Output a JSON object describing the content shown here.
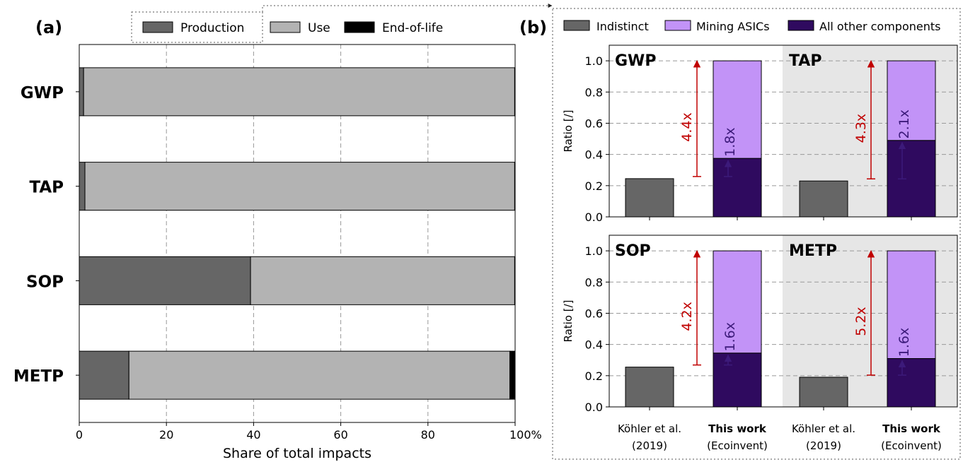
{
  "panel_a": {
    "label": "(a)",
    "chart_data": {
      "type": "bar",
      "orientation": "horizontal",
      "stacked": true,
      "categories": [
        "GWP",
        "TAP",
        "SOP",
        "METP"
      ],
      "series": [
        {
          "name": "Production",
          "values": [
            1.0,
            1.3,
            39.3,
            11.4
          ],
          "color": "#666666"
        },
        {
          "name": "Use",
          "values": [
            98.9,
            98.6,
            60.6,
            87.4
          ],
          "color": "#b3b3b3"
        },
        {
          "name": "End-of-life",
          "values": [
            0.1,
            0.1,
            0.1,
            1.2
          ],
          "color": "#000000"
        }
      ],
      "xlabel": "Share of total impacts",
      "xlim": [
        0,
        100
      ],
      "xticks": [
        "0",
        "20",
        "40",
        "60",
        "80",
        "100%"
      ],
      "grid": true,
      "legend": "top"
    }
  },
  "panel_b": {
    "label": "(b)",
    "legend": [
      {
        "name": "Indistinct",
        "color": "#666666"
      },
      {
        "name": "Mining ASICs",
        "color": "#c293f7"
      },
      {
        "name": "All other components",
        "color": "#2f0a5f"
      }
    ],
    "ylabel": "Ratio [/]",
    "yticks": [
      "0.0",
      "0.2",
      "0.4",
      "0.6",
      "0.8",
      "1.0"
    ],
    "xticks": [
      {
        "line1": "Köhler et al.",
        "line2": "(2019)",
        "bold": false
      },
      {
        "line1": "This work",
        "line2": "(Ecoinvent)",
        "bold": true
      },
      {
        "line1": "Köhler et al.",
        "line2": "(2019)",
        "bold": false
      },
      {
        "line1": "This work",
        "line2": "(Ecoinvent)",
        "bold": true
      }
    ],
    "chart_data": [
      {
        "type": "bar",
        "category": "GWP",
        "ylim": [
          0,
          1.1
        ],
        "kohler": 0.245,
        "this_work_other": 0.375,
        "this_work_asics": 0.625,
        "ratio_total": "4.4x",
        "ratio_other": "1.8x"
      },
      {
        "type": "bar",
        "category": "TAP",
        "ylim": [
          0,
          1.1
        ],
        "kohler": 0.23,
        "this_work_other": 0.49,
        "this_work_asics": 0.51,
        "ratio_total": "4.3x",
        "ratio_other": "2.1x"
      },
      {
        "type": "bar",
        "category": "SOP",
        "ylim": [
          0,
          1.1
        ],
        "kohler": 0.255,
        "this_work_other": 0.345,
        "this_work_asics": 0.655,
        "ratio_total": "4.2x",
        "ratio_other": "1.6x"
      },
      {
        "type": "bar",
        "category": "METP",
        "ylim": [
          0,
          1.1
        ],
        "kohler": 0.19,
        "this_work_other": 0.31,
        "this_work_asics": 0.69,
        "ratio_total": "5.2x",
        "ratio_other": "1.6x"
      }
    ]
  },
  "colors": {
    "arrow_total": "#c00000",
    "arrow_other": "#3c1a7a",
    "shade": "#e6e6e6",
    "grid": "#999999"
  }
}
